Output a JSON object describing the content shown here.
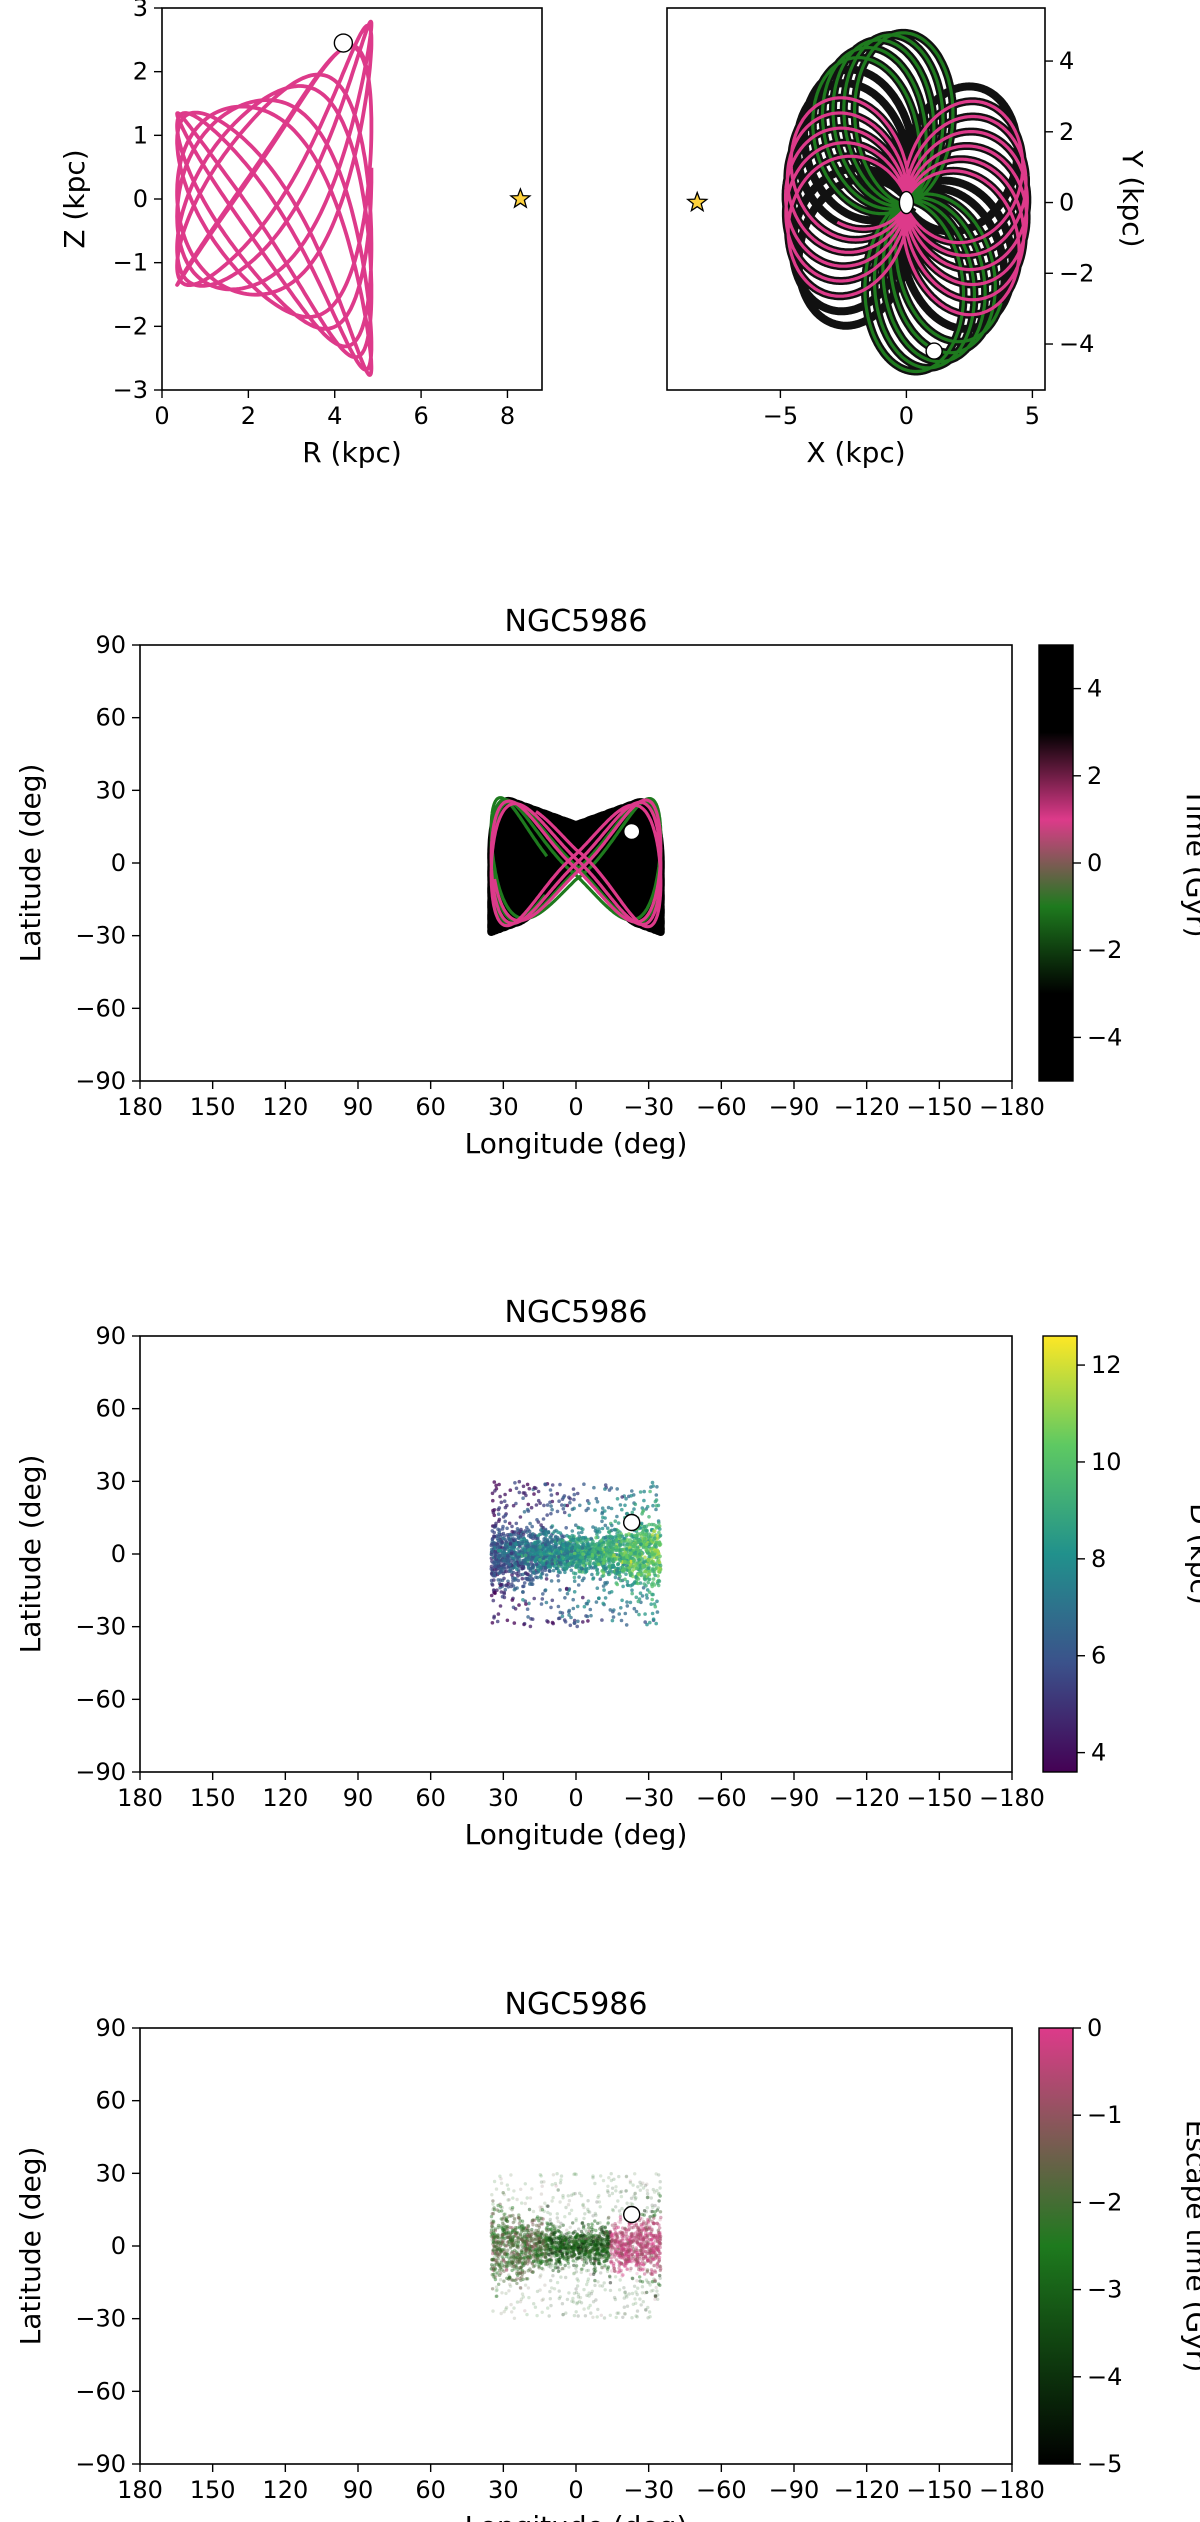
{
  "chart_data": [
    {
      "type": "line",
      "panel": "meridional orbit",
      "title": "",
      "xlabel": "R (kpc)",
      "ylabel": "Z (kpc)",
      "xlim": [
        0,
        8.8
      ],
      "ylim": [
        -3,
        3
      ],
      "xticks": [
        0,
        2,
        4,
        6,
        8
      ],
      "yticks": [
        -3,
        -2,
        -1,
        0,
        1,
        2,
        3
      ],
      "orbit": {
        "r_inner": 0.35,
        "r_outer": 4.85,
        "z_amp": 1.35,
        "z_amp_outer": 2.8
      },
      "cluster_position": {
        "R": 4.2,
        "Z": 2.45
      },
      "sun_position": {
        "R": 8.3,
        "Z": 0.0
      },
      "colors": {
        "past": "#1e7a1e",
        "future": "#dd3a8a",
        "distant": "#111111"
      }
    },
    {
      "type": "line",
      "panel": "face-on orbit",
      "title": "",
      "xlabel": "X (kpc)",
      "ylabel": "Y (kpc)",
      "xlim": [
        -9.5,
        5.5
      ],
      "ylim": [
        -5.3,
        5.5
      ],
      "xticks": [
        -5,
        0,
        5
      ],
      "yticks": [
        -4,
        -2,
        0,
        2,
        4
      ],
      "orbit": {
        "r_inner": 0.3,
        "r_outer": 4.8
      },
      "cluster_position": {
        "X": 1.1,
        "Y": -4.2
      },
      "center_marker": {
        "X": 0.0,
        "Y": 0.0
      },
      "sun_position": {
        "X": -8.3,
        "Y": 0.0
      },
      "colors": {
        "past": "#1e7a1e",
        "future": "#dd3a8a",
        "distant": "#111111"
      }
    },
    {
      "type": "line",
      "panel": "sky orbit",
      "title": "NGC5986",
      "xlabel": "Longitude (deg)",
      "ylabel": "Latitude (deg)",
      "xlim": [
        180,
        -180
      ],
      "ylim": [
        -90,
        90
      ],
      "xticks": [
        180,
        150,
        120,
        90,
        60,
        30,
        0,
        -30,
        -60,
        -90,
        -120,
        -150,
        -180
      ],
      "yticks": [
        -90,
        -60,
        -30,
        0,
        30,
        60,
        90
      ],
      "extent": {
        "l_half": 35,
        "b_half": 30
      },
      "cluster_position": {
        "l": -23,
        "b": 13
      },
      "colorbar": {
        "label": "Time (Gyr)",
        "min": -5,
        "max": 5,
        "ticks": [
          -4,
          -2,
          0,
          2,
          4
        ],
        "stops": [
          "#000000",
          "#000000",
          "#1e7a1e",
          "#dd3a8a",
          "#000000",
          "#000000"
        ]
      }
    },
    {
      "type": "scatter",
      "panel": "sky distance",
      "title": "NGC5986",
      "xlabel": "Longitude (deg)",
      "ylabel": "Latitude (deg)",
      "xlim": [
        180,
        -180
      ],
      "ylim": [
        -90,
        90
      ],
      "xticks": [
        180,
        150,
        120,
        90,
        60,
        30,
        0,
        -30,
        -60,
        -90,
        -120,
        -150,
        -180
      ],
      "yticks": [
        -90,
        -60,
        -30,
        0,
        30,
        60,
        90
      ],
      "extent": {
        "l_half": 35,
        "b_half": 30
      },
      "cluster_position": {
        "l": -23,
        "b": 13
      },
      "colorbar": {
        "label": "D (kpc)",
        "min": 3.6,
        "max": 12.6,
        "ticks": [
          4,
          6,
          8,
          10,
          12
        ],
        "stops": [
          "#440154",
          "#3b528b",
          "#21918c",
          "#5ec962",
          "#fde725"
        ]
      }
    },
    {
      "type": "scatter",
      "panel": "sky escape time",
      "title": "NGC5986",
      "xlabel": "Longitude (deg)",
      "ylabel": "Latitude (deg)",
      "xlim": [
        180,
        -180
      ],
      "ylim": [
        -90,
        90
      ],
      "xticks": [
        180,
        150,
        120,
        90,
        60,
        30,
        0,
        -30,
        -60,
        -90,
        -120,
        -150,
        -180
      ],
      "yticks": [
        -90,
        -60,
        -30,
        0,
        30,
        60,
        90
      ],
      "extent": {
        "l_half": 35,
        "b_half": 30
      },
      "cluster_position": {
        "l": -23,
        "b": 13
      },
      "colorbar": {
        "label": "Escape time (Gyr)",
        "min": -5,
        "max": 0,
        "ticks": [
          -5,
          -4,
          -3,
          -2,
          -1,
          0
        ],
        "stops": [
          "#000000",
          "#1e7a1e",
          "#dd3a8a"
        ]
      }
    }
  ]
}
